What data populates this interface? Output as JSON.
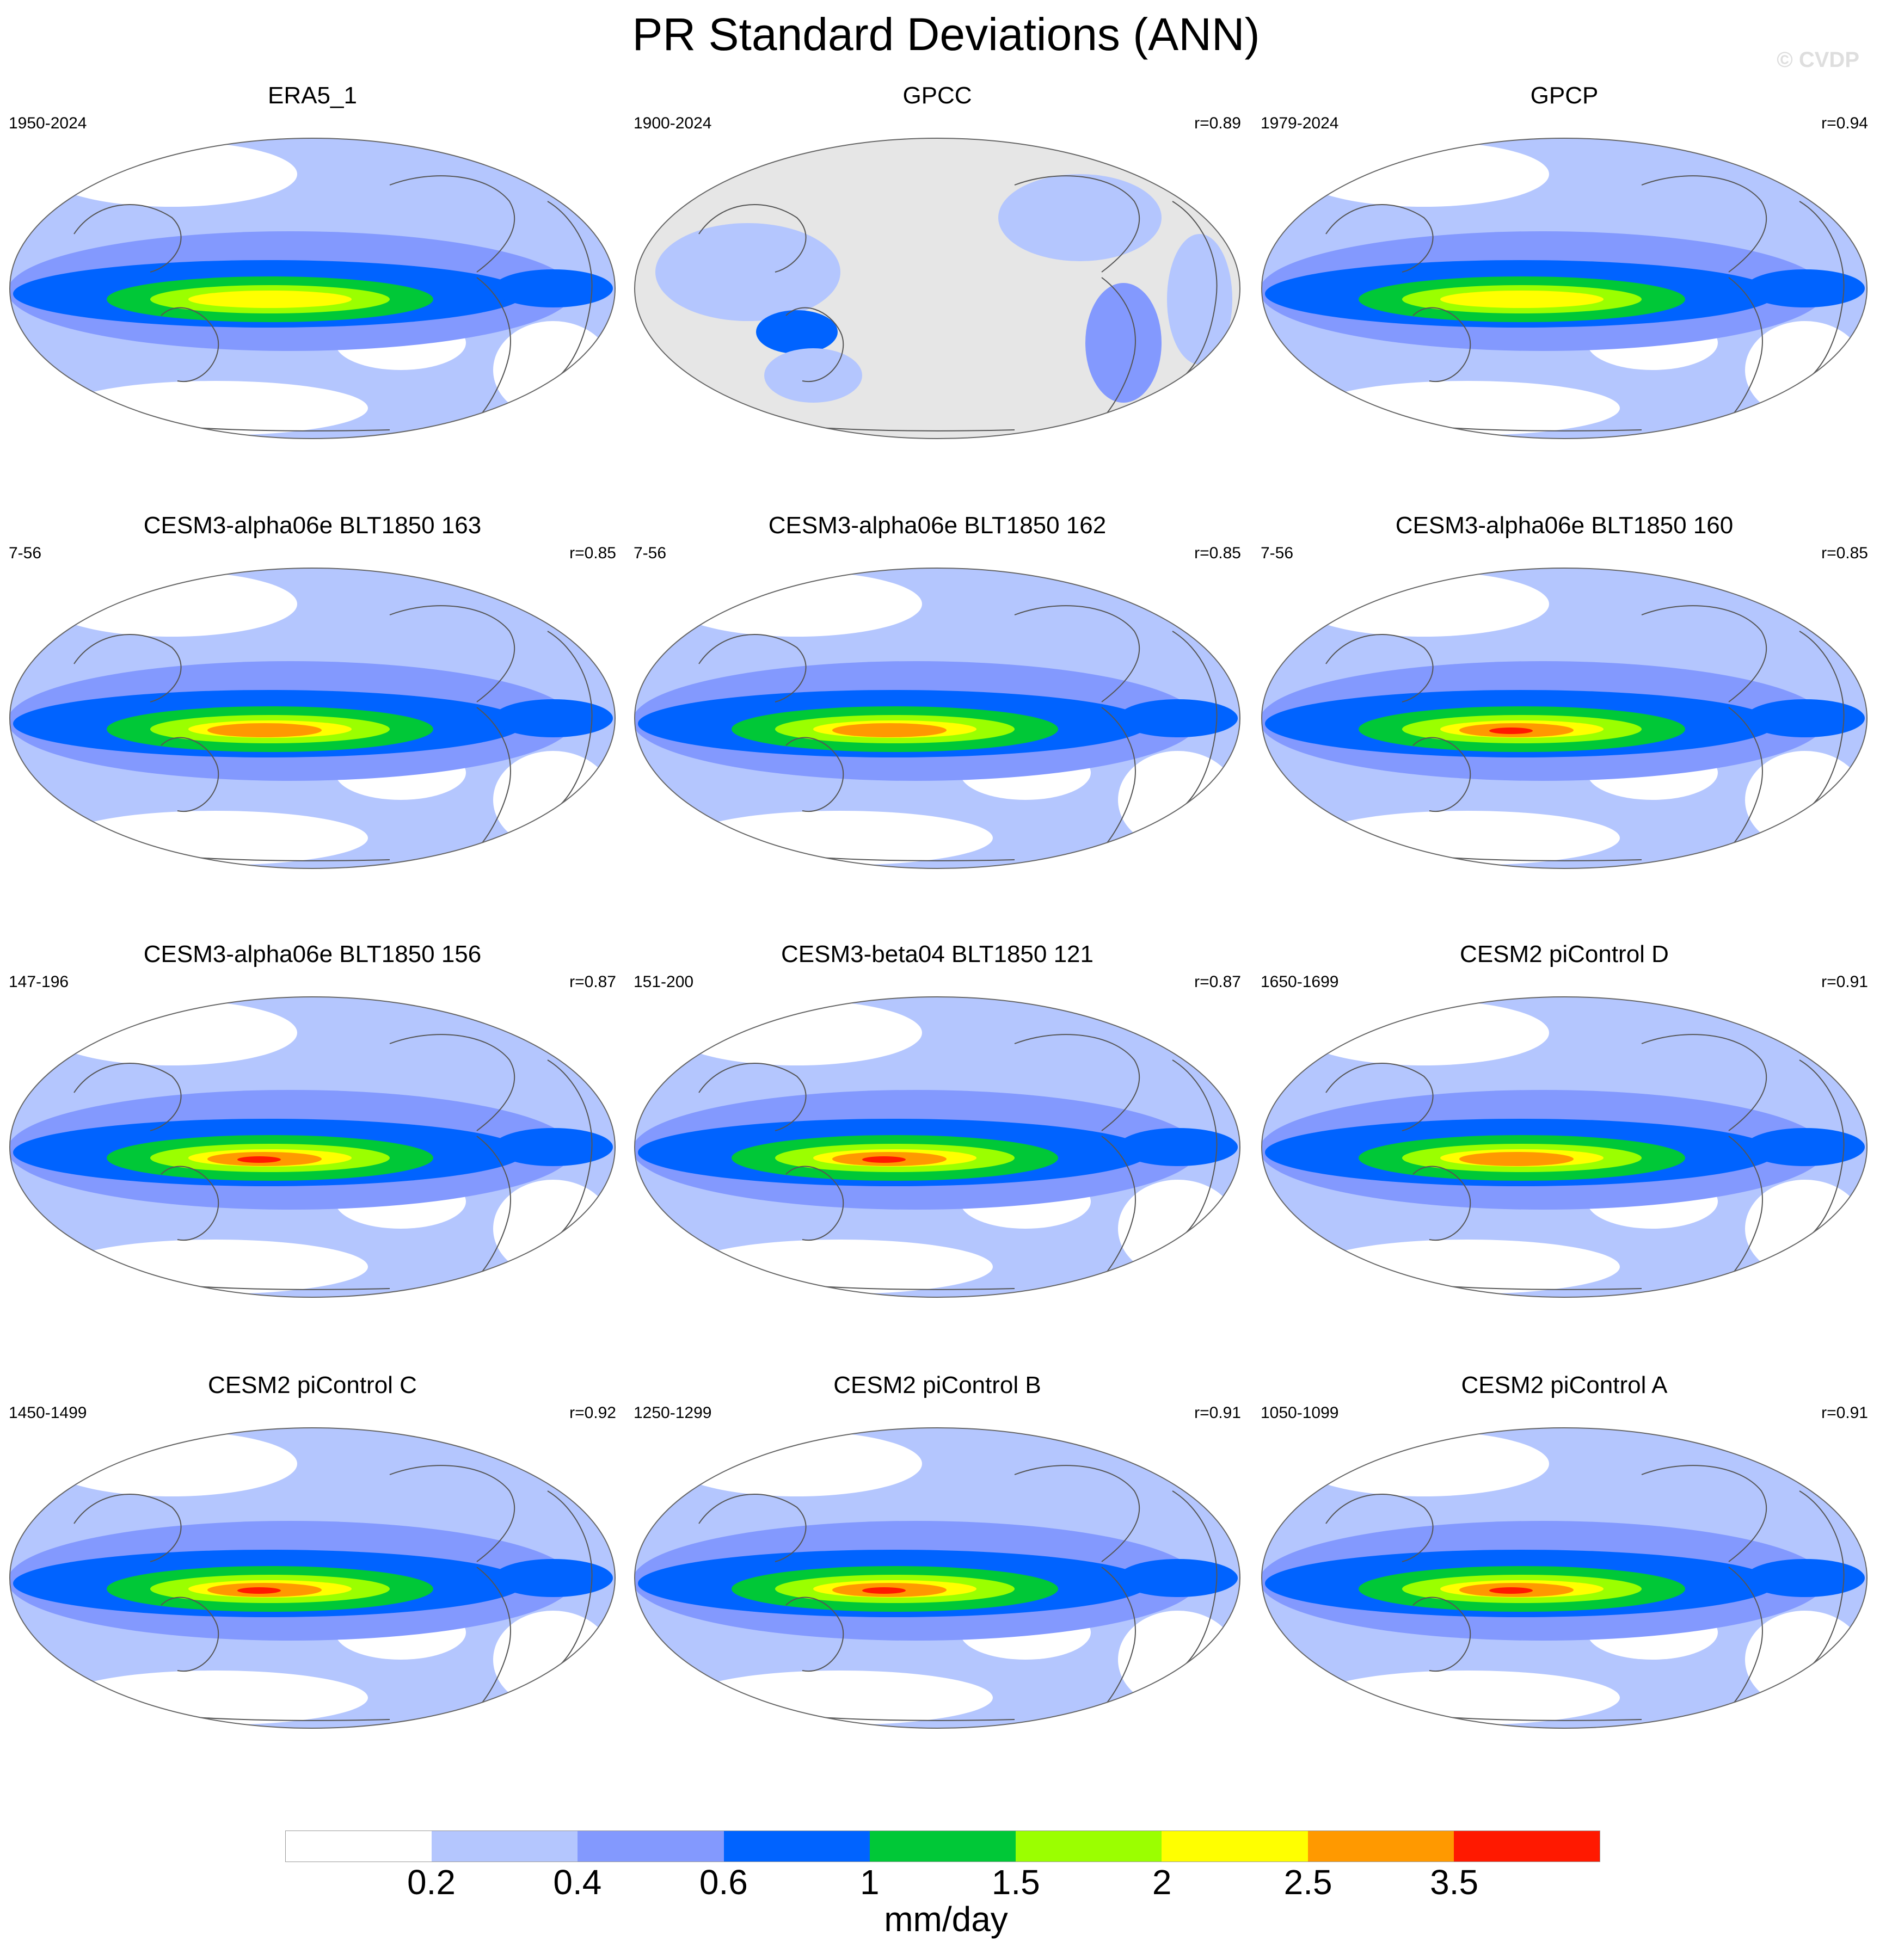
{
  "title": "PR Standard Deviations (ANN)",
  "watermark": "© CVDP",
  "colors": {
    "land_mask": "#e6e6e6",
    "coast": "#555555",
    "levels": [
      "#ffffff",
      "#b4c6fe",
      "#8399fe",
      "#0063ff",
      "#00c837",
      "#9bff00",
      "#ffff00",
      "#ff9900",
      "#ff1900"
    ]
  },
  "colorbar": {
    "labels": [
      "0.2",
      "0.4",
      "0.6",
      "1",
      "1.5",
      "2",
      "2.5",
      "3.5"
    ],
    "units": "mm/day"
  },
  "panels": [
    {
      "title": "ERA5_1",
      "years": "1950-2024",
      "r": "",
      "peak": 2
    },
    {
      "title": "GPCC",
      "years": "1900-2024",
      "r": "r=0.89",
      "peak": 0
    },
    {
      "title": "GPCP",
      "years": "1979-2024",
      "r": "r=0.94",
      "peak": 2
    },
    {
      "title": "CESM3-alpha06e BLT1850 163",
      "years": "7-56",
      "r": "r=0.85",
      "peak": 3
    },
    {
      "title": "CESM3-alpha06e BLT1850 162",
      "years": "7-56",
      "r": "r=0.85",
      "peak": 3
    },
    {
      "title": "CESM3-alpha06e BLT1850 160",
      "years": "7-56",
      "r": "r=0.85",
      "peak": 4
    },
    {
      "title": "CESM3-alpha06e BLT1850 156",
      "years": "147-196",
      "r": "r=0.87",
      "peak": 4
    },
    {
      "title": "CESM3-beta04 BLT1850 121",
      "years": "151-200",
      "r": "r=0.87",
      "peak": 4
    },
    {
      "title": "CESM2 piControl D",
      "years": "1650-1699",
      "r": "r=0.91",
      "peak": 3
    },
    {
      "title": "CESM2 piControl C",
      "years": "1450-1499",
      "r": "r=0.92",
      "peak": 4
    },
    {
      "title": "CESM2 piControl B",
      "years": "1250-1299",
      "r": "r=0.91",
      "peak": 4
    },
    {
      "title": "CESM2 piControl A",
      "years": "1050-1099",
      "r": "r=0.91",
      "peak": 4
    }
  ]
}
